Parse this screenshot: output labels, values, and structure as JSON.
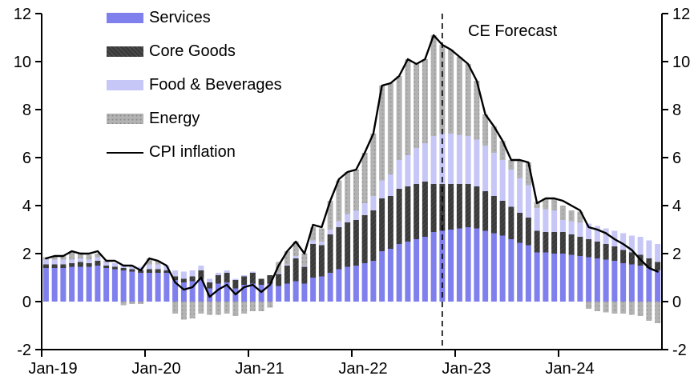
{
  "chart_data": {
    "type": "bar",
    "stacked": true,
    "title": "",
    "xlabel": "",
    "ylabel": "",
    "months": [
      "Jan-19",
      "Feb-19",
      "Mar-19",
      "Apr-19",
      "May-19",
      "Jun-19",
      "Jul-19",
      "Aug-19",
      "Sep-19",
      "Oct-19",
      "Nov-19",
      "Dec-19",
      "Jan-20",
      "Feb-20",
      "Mar-20",
      "Apr-20",
      "May-20",
      "Jun-20",
      "Jul-20",
      "Aug-20",
      "Sep-20",
      "Oct-20",
      "Nov-20",
      "Dec-20",
      "Jan-21",
      "Feb-21",
      "Mar-21",
      "Apr-21",
      "May-21",
      "Jun-21",
      "Jul-21",
      "Aug-21",
      "Sep-21",
      "Oct-21",
      "Nov-21",
      "Dec-21",
      "Jan-22",
      "Feb-22",
      "Mar-22",
      "Apr-22",
      "May-22",
      "Jun-22",
      "Jul-22",
      "Aug-22",
      "Sep-22",
      "Oct-22",
      "Nov-22",
      "Dec-22",
      "Jan-23",
      "Feb-23",
      "Mar-23",
      "Apr-23",
      "May-23",
      "Jun-23",
      "Jul-23",
      "Aug-23",
      "Sep-23",
      "Oct-23",
      "Nov-23",
      "Dec-23",
      "Jan-24",
      "Feb-24",
      "Mar-24",
      "Apr-24",
      "May-24",
      "Jun-24",
      "Jul-24",
      "Aug-24",
      "Sep-24",
      "Oct-24",
      "Nov-24",
      "Dec-24"
    ],
    "series": [
      {
        "name": "Services",
        "key": "services",
        "color": "#7f7fee",
        "pattern": "solid",
        "values": [
          1.4,
          1.4,
          1.4,
          1.45,
          1.45,
          1.45,
          1.5,
          1.4,
          1.35,
          1.3,
          1.25,
          1.2,
          1.2,
          1.2,
          1.2,
          0.9,
          0.8,
          0.85,
          0.95,
          0.55,
          0.75,
          0.8,
          0.55,
          0.7,
          0.75,
          0.7,
          0.75,
          0.65,
          0.75,
          0.85,
          0.75,
          1.0,
          1.05,
          1.2,
          1.35,
          1.45,
          1.5,
          1.6,
          1.7,
          2.1,
          2.2,
          2.4,
          2.5,
          2.6,
          2.7,
          2.9,
          2.95,
          3.0,
          3.05,
          3.1,
          3.05,
          2.95,
          2.85,
          2.75,
          2.6,
          2.45,
          2.35,
          2.05,
          2.05,
          2.0,
          2.0,
          1.95,
          1.9,
          1.85,
          1.8,
          1.75,
          1.7,
          1.6,
          1.55,
          1.5,
          1.4,
          1.3
        ]
      },
      {
        "name": "Core Goods",
        "key": "core_goods",
        "color": "#3a3a3a",
        "pattern": "hatch",
        "values": [
          0.15,
          0.15,
          0.15,
          0.15,
          0.2,
          0.15,
          0.2,
          0.1,
          0.1,
          0.1,
          0.1,
          0.1,
          0.15,
          0.15,
          0.1,
          0.15,
          0.15,
          0.2,
          0.35,
          0.25,
          0.35,
          0.4,
          0.35,
          0.35,
          0.45,
          0.25,
          0.35,
          0.5,
          0.75,
          0.95,
          0.7,
          1.4,
          1.3,
          1.6,
          1.75,
          1.85,
          1.9,
          2.0,
          2.1,
          2.2,
          2.2,
          2.3,
          2.3,
          2.3,
          2.3,
          2.0,
          1.95,
          1.9,
          1.85,
          1.8,
          1.75,
          1.65,
          1.55,
          1.45,
          1.35,
          1.25,
          1.15,
          0.9,
          0.85,
          0.9,
          0.9,
          0.85,
          0.8,
          0.75,
          0.7,
          0.65,
          0.6,
          0.55,
          0.5,
          0.45,
          0.4,
          0.35
        ]
      },
      {
        "name": "Food & Beverages",
        "key": "food_beverages",
        "color": "#c6c6f7",
        "pattern": "solid",
        "values": [
          0.2,
          0.2,
          0.2,
          0.15,
          0.15,
          0.15,
          0.15,
          0.15,
          0.15,
          0.15,
          0.15,
          0.15,
          0.2,
          0.2,
          0.2,
          0.25,
          0.3,
          0.25,
          0.2,
          0.15,
          0.1,
          0.1,
          0.05,
          0.05,
          0.05,
          0.0,
          0.0,
          0.05,
          0.05,
          0.1,
          0.05,
          0.15,
          0.15,
          0.2,
          0.25,
          0.35,
          0.4,
          0.5,
          0.6,
          0.75,
          0.9,
          1.2,
          1.3,
          1.5,
          1.6,
          2.0,
          2.1,
          2.1,
          2.05,
          2.0,
          1.95,
          1.9,
          1.8,
          1.7,
          1.55,
          1.45,
          1.35,
          0.95,
          0.95,
          0.9,
          0.5,
          0.55,
          0.6,
          0.65,
          0.65,
          0.65,
          0.65,
          0.7,
          0.7,
          0.75,
          0.75,
          0.75
        ]
      },
      {
        "name": "Energy",
        "key": "energy",
        "color": "#b3b3b3",
        "pattern": "dots",
        "values": [
          0.1,
          0.15,
          0.15,
          0.35,
          0.25,
          0.2,
          0.15,
          0.05,
          0.0,
          -0.15,
          -0.1,
          -0.1,
          0.25,
          0.15,
          0.0,
          -0.5,
          -0.75,
          -0.7,
          -0.5,
          -0.55,
          -0.55,
          -0.5,
          -0.6,
          -0.5,
          -0.4,
          -0.4,
          -0.25,
          0.45,
          0.55,
          0.6,
          0.5,
          0.55,
          0.55,
          1.2,
          1.7,
          1.75,
          1.7,
          2.1,
          2.6,
          3.95,
          3.8,
          3.5,
          4.0,
          3.5,
          3.5,
          4.2,
          3.7,
          3.5,
          3.25,
          3.0,
          2.45,
          1.3,
          1.1,
          0.8,
          0.4,
          0.75,
          0.95,
          0.25,
          0.45,
          0.5,
          0.6,
          0.45,
          0.45,
          -0.3,
          -0.4,
          -0.45,
          -0.5,
          -0.5,
          -0.55,
          -0.6,
          -0.8,
          -0.9
        ]
      }
    ],
    "line_series": {
      "name": "CPI inflation",
      "color": "#000000",
      "values": [
        1.8,
        1.9,
        1.9,
        2.1,
        2.0,
        2.0,
        2.1,
        1.7,
        1.7,
        1.5,
        1.5,
        1.3,
        1.8,
        1.7,
        1.5,
        0.8,
        0.5,
        0.6,
        1.0,
        0.2,
        0.5,
        0.7,
        0.3,
        0.6,
        0.7,
        0.4,
        0.7,
        1.5,
        2.1,
        2.5,
        2.0,
        3.2,
        3.1,
        4.2,
        5.1,
        5.4,
        5.5,
        6.2,
        7.0,
        9.0,
        9.1,
        9.4,
        10.1,
        9.9,
        10.1,
        11.1,
        10.7,
        10.5,
        10.2,
        9.9,
        9.2,
        7.8,
        7.3,
        6.7,
        5.9,
        5.9,
        5.8,
        4.1,
        4.3,
        4.3,
        4.2,
        4.0,
        3.8,
        3.1,
        3.0,
        2.85,
        2.6,
        2.4,
        2.15,
        1.75,
        1.4,
        1.25
      ]
    },
    "forecast": {
      "label": "CE Forecast",
      "start_month": "Nov-22",
      "start_index": 46
    },
    "y_axis": {
      "min": -2,
      "max": 12,
      "tick_step": 2,
      "ticks": [
        -2,
        0,
        2,
        4,
        6,
        8,
        10,
        12
      ],
      "both_sides": true,
      "grid": false
    },
    "x_axis": {
      "tick_labels": [
        "Jan-19",
        "Jan-20",
        "Jan-21",
        "Jan-22",
        "Jan-23",
        "Jan-24"
      ],
      "tick_month_indices": [
        0,
        12,
        24,
        36,
        48,
        60
      ]
    },
    "legend_position": "top-left",
    "legend": [
      {
        "label": "Services"
      },
      {
        "label": "Core Goods"
      },
      {
        "label": "Food & Beverages"
      },
      {
        "label": "Energy"
      },
      {
        "label": "CPI inflation"
      }
    ]
  }
}
